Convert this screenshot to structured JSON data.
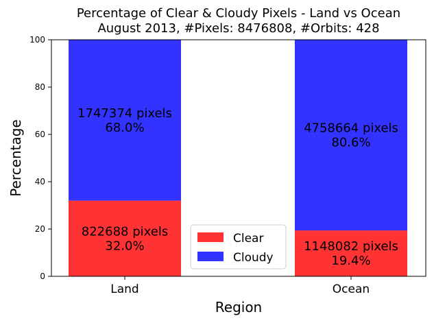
{
  "chart_data": {
    "type": "bar",
    "stacked": true,
    "title": "Percentage of Clear & Cloudy Pixels - Land vs Ocean\nAugust 2013, #Pixels: 8476808, #Orbits: 428",
    "xlabel": "Region",
    "ylabel": "Percentage",
    "categories": [
      "Land",
      "Ocean"
    ],
    "ylim": [
      0,
      100
    ],
    "yticks": [
      0,
      20,
      40,
      60,
      80,
      100
    ],
    "grid": false,
    "legend_position": "lower center",
    "series": [
      {
        "name": "Clear",
        "color": "#ff3333",
        "values": [
          32.0,
          19.4
        ],
        "labels": [
          "822688 pixels\n32.0%",
          "1148082 pixels\n19.4%"
        ]
      },
      {
        "name": "Cloudy",
        "color": "#3333ff",
        "values": [
          68.0,
          80.6
        ],
        "labels": [
          "1747374 pixels\n68.0%",
          "4758664 pixels\n80.6%"
        ]
      }
    ]
  }
}
